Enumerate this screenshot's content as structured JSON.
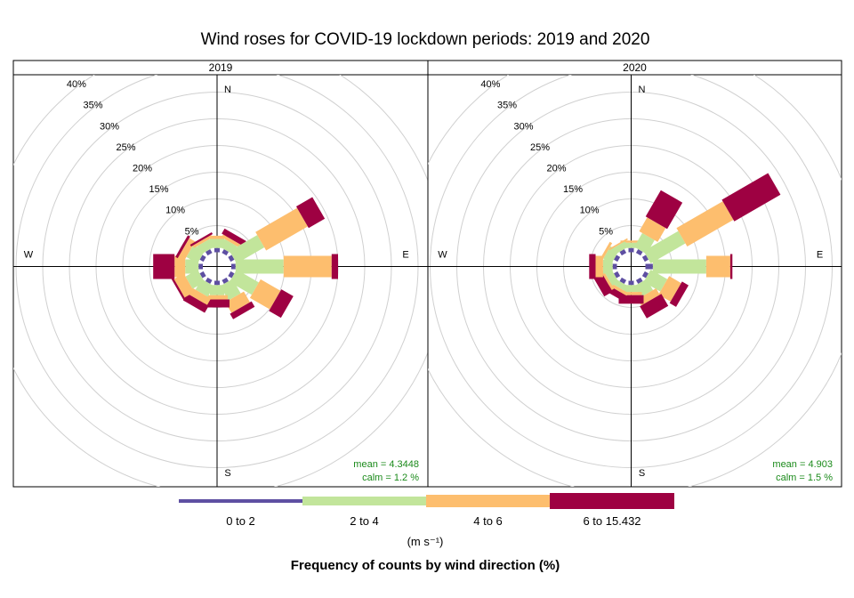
{
  "chart_data": {
    "type": "windrose",
    "title": "Wind roses for COVID-19 lockdown periods: 2019 and 2020",
    "subtitle": "Frequency of counts by wind direction (%)",
    "units": "(m s⁻¹)",
    "cardinals": [
      "N",
      "E",
      "S",
      "W"
    ],
    "ring_labels": [
      "5%",
      "10%",
      "15%",
      "20%",
      "25%",
      "30%",
      "35%",
      "40%"
    ],
    "rings": [
      5,
      10,
      15,
      20,
      25,
      30,
      35,
      40
    ],
    "colors": [
      "#5e4fa2",
      "#c2e59b",
      "#fdbe6e",
      "#9e0142"
    ],
    "speed_bins": [
      "0 to 2",
      "2 to 4",
      "4 to 6",
      "6 to 15.432"
    ],
    "directions_deg": [
      0,
      30,
      60,
      90,
      120,
      150,
      180,
      210,
      240,
      270,
      300,
      330
    ],
    "panels": [
      {
        "name": "2019",
        "mean_label": "mean",
        "mean_value": "4.3448",
        "calm_label": "calm",
        "calm_value": "1.2 %",
        "freq": [
          [
            0.8,
            1.7,
            0.6,
            0.0
          ],
          [
            0.8,
            1.7,
            0.6,
            1.1
          ],
          [
            0.8,
            6.0,
            9.0,
            3.5
          ],
          [
            0.8,
            9.0,
            9.0,
            1.2
          ],
          [
            0.8,
            4.8,
            4.3,
            2.6
          ],
          [
            0.8,
            3.1,
            2.3,
            1.2
          ],
          [
            0.8,
            1.9,
            0.8,
            1.5
          ],
          [
            0.8,
            2.3,
            1.4,
            1.5
          ],
          [
            0.8,
            2.6,
            2.1,
            0.4
          ],
          [
            0.8,
            2.5,
            2.0,
            4.0
          ],
          [
            0.8,
            2.4,
            1.3,
            0.5
          ],
          [
            0.8,
            1.7,
            0.5,
            0.4
          ]
        ]
      },
      {
        "name": "2020",
        "mean_label": "mean",
        "mean_value": "4.903",
        "calm_label": "calm",
        "calm_value": "1.5 %",
        "freq": [
          [
            0.8,
            1.0,
            0.4,
            0.0
          ],
          [
            0.8,
            3.0,
            3.0,
            5.7
          ],
          [
            0.8,
            7.5,
            10.0,
            10.0
          ],
          [
            1.4,
            10.0,
            4.5,
            0.4
          ],
          [
            0.8,
            3.6,
            2.6,
            1.4
          ],
          [
            0.8,
            2.4,
            1.4,
            2.6
          ],
          [
            0.8,
            1.3,
            0.6,
            1.6
          ],
          [
            0.8,
            1.1,
            0.6,
            1.2
          ],
          [
            0.8,
            1.4,
            0.5,
            1.8
          ],
          [
            0.8,
            1.8,
            1.4,
            1.2
          ],
          [
            0.8,
            1.8,
            0.5,
            0.0
          ],
          [
            0.8,
            1.2,
            0.3,
            0.0
          ]
        ]
      }
    ]
  }
}
